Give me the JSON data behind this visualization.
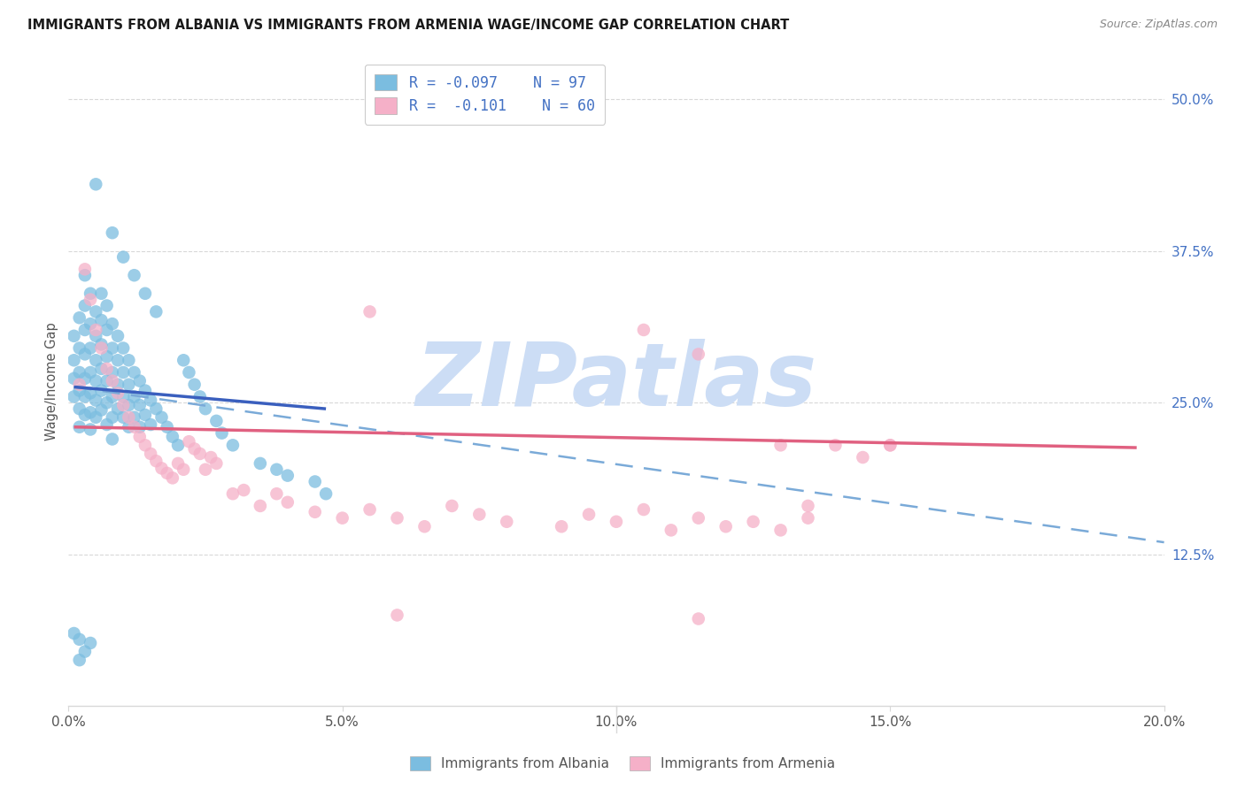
{
  "title": "IMMIGRANTS FROM ALBANIA VS IMMIGRANTS FROM ARMENIA WAGE/INCOME GAP CORRELATION CHART",
  "source": "Source: ZipAtlas.com",
  "xlabel_ticks": [
    "0.0%",
    "5.0%",
    "10.0%",
    "15.0%",
    "20.0%"
  ],
  "xlabel_vals": [
    0.0,
    0.05,
    0.1,
    0.15,
    0.2
  ],
  "ylabel_ticks_right": [
    "12.5%",
    "25.0%",
    "37.5%",
    "50.0%"
  ],
  "ylabel_vals": [
    0.125,
    0.25,
    0.375,
    0.5
  ],
  "xmin": 0.0,
  "xmax": 0.2,
  "ymin": 0.0,
  "ymax": 0.535,
  "albania_color": "#7bbde0",
  "armenia_color": "#f5b0c8",
  "albania_R": -0.097,
  "albania_N": 97,
  "armenia_R": -0.101,
  "armenia_N": 60,
  "legend_label_albania": "Immigrants from Albania",
  "legend_label_armenia": "Immigrants from Armenia",
  "trend_albania_solid_color": "#3a5fbe",
  "trend_dashed_color": "#7aaad8",
  "trend_armenia_solid_color": "#e06080",
  "watermark_text": "ZIPatlas",
  "watermark_color": "#ccddf5",
  "ylabel": "Wage/Income Gap",
  "grid_color": "#d8d8d8",
  "title_color": "#1a1a1a",
  "source_color": "#888888",
  "axis_color": "#555555",
  "right_axis_color": "#4472c4",
  "legend_text_color": "#4472c4",
  "bottom_legend_color": "#555555",
  "albania_points": [
    [
      0.001,
      0.305
    ],
    [
      0.001,
      0.285
    ],
    [
      0.001,
      0.27
    ],
    [
      0.001,
      0.255
    ],
    [
      0.002,
      0.32
    ],
    [
      0.002,
      0.295
    ],
    [
      0.002,
      0.275
    ],
    [
      0.002,
      0.26
    ],
    [
      0.002,
      0.245
    ],
    [
      0.002,
      0.23
    ],
    [
      0.003,
      0.355
    ],
    [
      0.003,
      0.33
    ],
    [
      0.003,
      0.31
    ],
    [
      0.003,
      0.29
    ],
    [
      0.003,
      0.27
    ],
    [
      0.003,
      0.255
    ],
    [
      0.003,
      0.24
    ],
    [
      0.004,
      0.34
    ],
    [
      0.004,
      0.315
    ],
    [
      0.004,
      0.295
    ],
    [
      0.004,
      0.275
    ],
    [
      0.004,
      0.258
    ],
    [
      0.004,
      0.242
    ],
    [
      0.004,
      0.228
    ],
    [
      0.005,
      0.325
    ],
    [
      0.005,
      0.305
    ],
    [
      0.005,
      0.285
    ],
    [
      0.005,
      0.268
    ],
    [
      0.005,
      0.252
    ],
    [
      0.005,
      0.238
    ],
    [
      0.006,
      0.34
    ],
    [
      0.006,
      0.318
    ],
    [
      0.006,
      0.298
    ],
    [
      0.006,
      0.278
    ],
    [
      0.006,
      0.26
    ],
    [
      0.006,
      0.244
    ],
    [
      0.007,
      0.33
    ],
    [
      0.007,
      0.31
    ],
    [
      0.007,
      0.288
    ],
    [
      0.007,
      0.268
    ],
    [
      0.007,
      0.25
    ],
    [
      0.007,
      0.232
    ],
    [
      0.008,
      0.315
    ],
    [
      0.008,
      0.295
    ],
    [
      0.008,
      0.275
    ],
    [
      0.008,
      0.255
    ],
    [
      0.008,
      0.238
    ],
    [
      0.008,
      0.22
    ],
    [
      0.009,
      0.305
    ],
    [
      0.009,
      0.285
    ],
    [
      0.009,
      0.265
    ],
    [
      0.009,
      0.245
    ],
    [
      0.01,
      0.295
    ],
    [
      0.01,
      0.275
    ],
    [
      0.01,
      0.255
    ],
    [
      0.01,
      0.238
    ],
    [
      0.011,
      0.285
    ],
    [
      0.011,
      0.265
    ],
    [
      0.011,
      0.248
    ],
    [
      0.011,
      0.23
    ],
    [
      0.012,
      0.275
    ],
    [
      0.012,
      0.255
    ],
    [
      0.012,
      0.238
    ],
    [
      0.013,
      0.268
    ],
    [
      0.013,
      0.248
    ],
    [
      0.013,
      0.23
    ],
    [
      0.014,
      0.26
    ],
    [
      0.014,
      0.24
    ],
    [
      0.015,
      0.252
    ],
    [
      0.015,
      0.232
    ],
    [
      0.016,
      0.245
    ],
    [
      0.017,
      0.238
    ],
    [
      0.018,
      0.23
    ],
    [
      0.019,
      0.222
    ],
    [
      0.02,
      0.215
    ],
    [
      0.021,
      0.285
    ],
    [
      0.022,
      0.275
    ],
    [
      0.023,
      0.265
    ],
    [
      0.024,
      0.255
    ],
    [
      0.025,
      0.245
    ],
    [
      0.027,
      0.235
    ],
    [
      0.028,
      0.225
    ],
    [
      0.03,
      0.215
    ],
    [
      0.035,
      0.2
    ],
    [
      0.038,
      0.195
    ],
    [
      0.04,
      0.19
    ],
    [
      0.045,
      0.185
    ],
    [
      0.047,
      0.175
    ],
    [
      0.005,
      0.43
    ],
    [
      0.008,
      0.39
    ],
    [
      0.01,
      0.37
    ],
    [
      0.012,
      0.355
    ],
    [
      0.014,
      0.34
    ],
    [
      0.016,
      0.325
    ],
    [
      0.001,
      0.06
    ],
    [
      0.002,
      0.055
    ],
    [
      0.002,
      0.038
    ],
    [
      0.003,
      0.045
    ],
    [
      0.004,
      0.052
    ]
  ],
  "armenia_points": [
    [
      0.002,
      0.265
    ],
    [
      0.003,
      0.36
    ],
    [
      0.004,
      0.335
    ],
    [
      0.005,
      0.31
    ],
    [
      0.006,
      0.295
    ],
    [
      0.007,
      0.278
    ],
    [
      0.008,
      0.268
    ],
    [
      0.009,
      0.258
    ],
    [
      0.01,
      0.248
    ],
    [
      0.011,
      0.238
    ],
    [
      0.012,
      0.23
    ],
    [
      0.013,
      0.222
    ],
    [
      0.014,
      0.215
    ],
    [
      0.015,
      0.208
    ],
    [
      0.016,
      0.202
    ],
    [
      0.017,
      0.196
    ],
    [
      0.018,
      0.192
    ],
    [
      0.019,
      0.188
    ],
    [
      0.02,
      0.2
    ],
    [
      0.021,
      0.195
    ],
    [
      0.022,
      0.218
    ],
    [
      0.023,
      0.212
    ],
    [
      0.024,
      0.208
    ],
    [
      0.025,
      0.195
    ],
    [
      0.026,
      0.205
    ],
    [
      0.027,
      0.2
    ],
    [
      0.03,
      0.175
    ],
    [
      0.032,
      0.178
    ],
    [
      0.035,
      0.165
    ],
    [
      0.038,
      0.175
    ],
    [
      0.04,
      0.168
    ],
    [
      0.045,
      0.16
    ],
    [
      0.05,
      0.155
    ],
    [
      0.055,
      0.162
    ],
    [
      0.06,
      0.155
    ],
    [
      0.065,
      0.148
    ],
    [
      0.07,
      0.165
    ],
    [
      0.075,
      0.158
    ],
    [
      0.08,
      0.152
    ],
    [
      0.09,
      0.148
    ],
    [
      0.095,
      0.158
    ],
    [
      0.1,
      0.152
    ],
    [
      0.105,
      0.162
    ],
    [
      0.11,
      0.145
    ],
    [
      0.115,
      0.155
    ],
    [
      0.12,
      0.148
    ],
    [
      0.125,
      0.152
    ],
    [
      0.13,
      0.145
    ],
    [
      0.135,
      0.155
    ],
    [
      0.14,
      0.215
    ],
    [
      0.145,
      0.205
    ],
    [
      0.15,
      0.215
    ],
    [
      0.055,
      0.325
    ],
    [
      0.105,
      0.31
    ],
    [
      0.115,
      0.29
    ],
    [
      0.06,
      0.075
    ],
    [
      0.13,
      0.215
    ],
    [
      0.135,
      0.165
    ],
    [
      0.115,
      0.072
    ],
    [
      0.15,
      0.215
    ]
  ]
}
